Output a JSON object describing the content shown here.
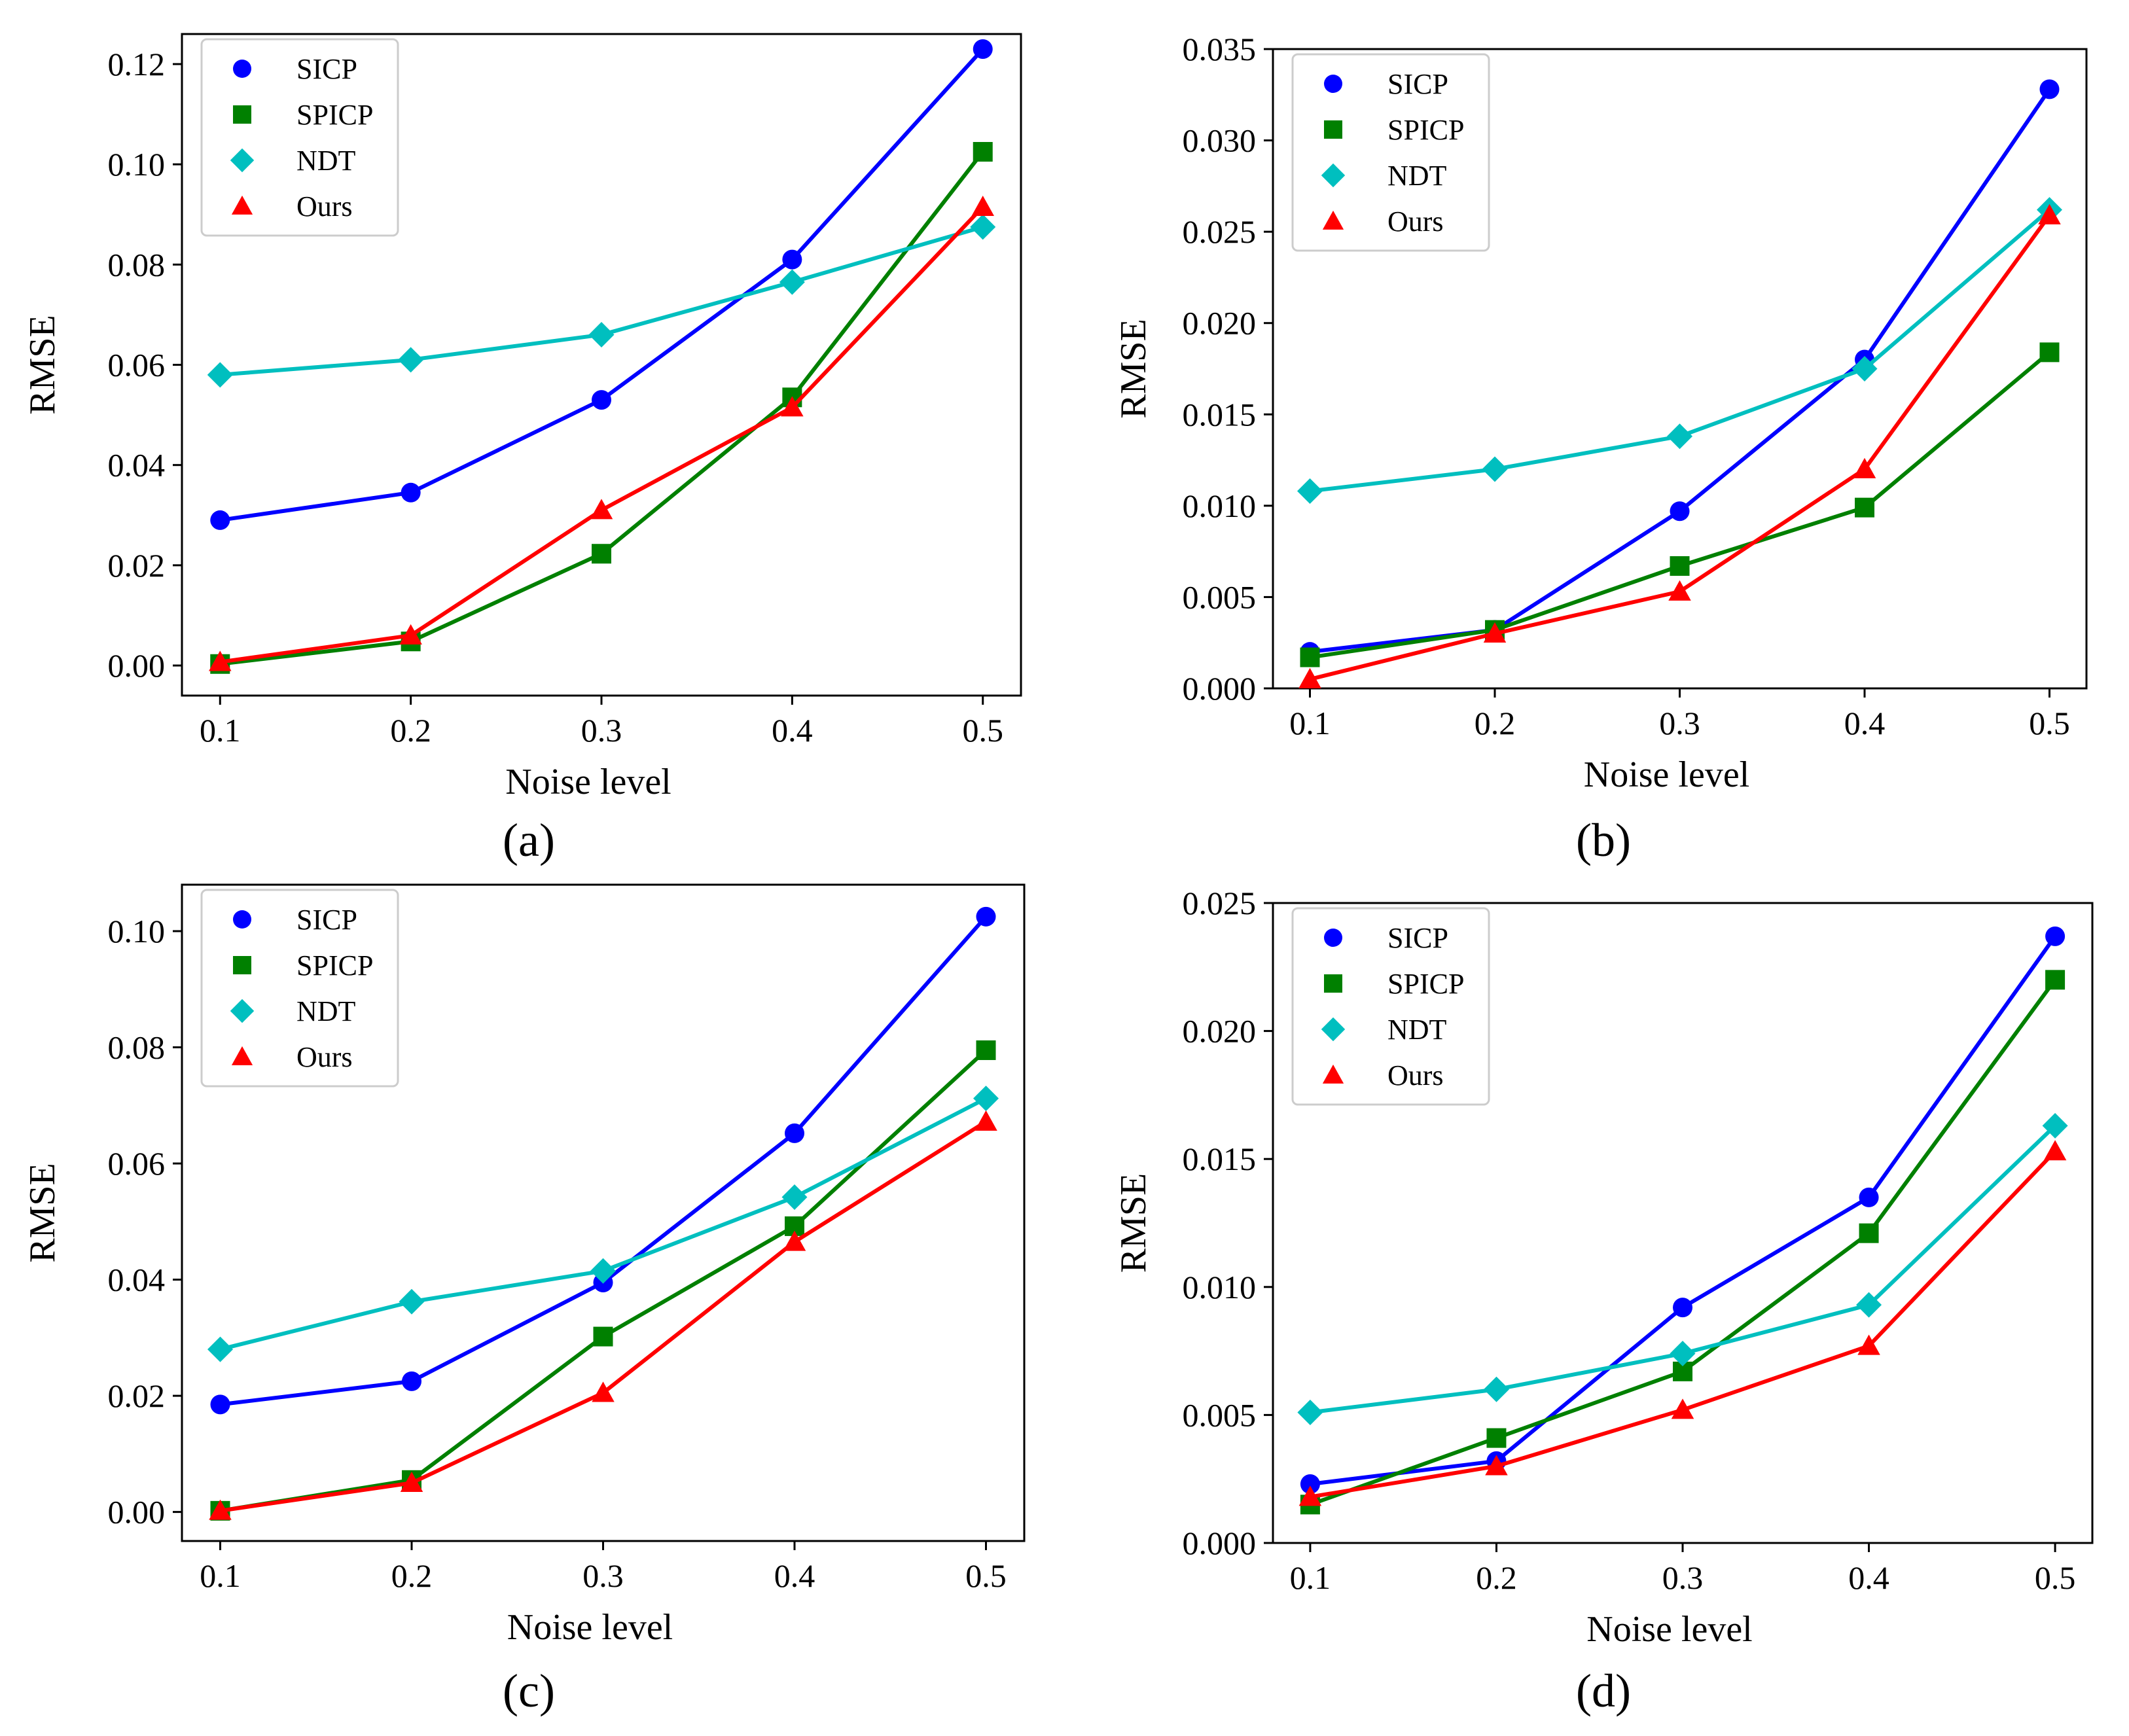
{
  "figure": {
    "panel_labels": [
      "(a)",
      "(b)",
      "(c)",
      "(d)"
    ],
    "panel_letters": [
      "a",
      "b",
      "c",
      "d"
    ]
  },
  "colors": {
    "SICP": "#0000ff",
    "SPICP": "#008000",
    "NDT": "#00bfbf",
    "Ours": "#ff0000"
  },
  "chart_data": [
    {
      "type": "line",
      "title": "",
      "xlabel": "Noise level",
      "ylabel": "RMSE",
      "x": [
        0.1,
        0.2,
        0.3,
        0.4,
        0.5
      ],
      "x_ticks": [
        "0.1",
        "0.2",
        "0.3",
        "0.4",
        "0.5"
      ],
      "ylim": [
        -0.006,
        0.126
      ],
      "y_ticks": [
        0.0,
        0.02,
        0.04,
        0.06,
        0.08,
        0.1,
        0.12
      ],
      "y_tick_labels": [
        "0.00",
        "0.02",
        "0.04",
        "0.06",
        "0.08",
        "0.10",
        "0.12"
      ],
      "legend_position": "upper-left",
      "series": [
        {
          "name": "SICP",
          "marker": "circle",
          "values": [
            0.029,
            0.0345,
            0.053,
            0.081,
            0.123
          ]
        },
        {
          "name": "SPICP",
          "marker": "square",
          "values": [
            0.0003,
            0.0048,
            0.0223,
            0.0535,
            0.1025
          ]
        },
        {
          "name": "NDT",
          "marker": "diamond",
          "values": [
            0.058,
            0.061,
            0.066,
            0.0765,
            0.0875
          ]
        },
        {
          "name": "Ours",
          "marker": "triangle",
          "values": [
            0.0007,
            0.006,
            0.031,
            0.0515,
            0.0915
          ]
        }
      ]
    },
    {
      "type": "line",
      "title": "",
      "xlabel": "Noise level",
      "ylabel": "RMSE",
      "x": [
        0.1,
        0.2,
        0.3,
        0.4,
        0.5
      ],
      "x_ticks": [
        "0.1",
        "0.2",
        "0.3",
        "0.4",
        "0.5"
      ],
      "ylim": [
        0.0,
        0.035
      ],
      "y_ticks": [
        0.0,
        0.005,
        0.01,
        0.015,
        0.02,
        0.025,
        0.03,
        0.035
      ],
      "y_tick_labels": [
        "0.000",
        "0.005",
        "0.010",
        "0.015",
        "0.020",
        "0.025",
        "0.030",
        "0.035"
      ],
      "legend_position": "upper-left",
      "series": [
        {
          "name": "SICP",
          "marker": "circle",
          "values": [
            0.002,
            0.0032,
            0.0097,
            0.018,
            0.0328
          ]
        },
        {
          "name": "SPICP",
          "marker": "square",
          "values": [
            0.0017,
            0.0032,
            0.0067,
            0.0099,
            0.0184
          ]
        },
        {
          "name": "NDT",
          "marker": "diamond",
          "values": [
            0.0108,
            0.012,
            0.0138,
            0.0175,
            0.0262
          ]
        },
        {
          "name": "Ours",
          "marker": "triangle",
          "values": [
            0.0005,
            0.003,
            0.0053,
            0.012,
            0.0259
          ]
        }
      ]
    },
    {
      "type": "line",
      "title": "",
      "xlabel": "Noise level",
      "ylabel": "RMSE",
      "x": [
        0.1,
        0.2,
        0.3,
        0.4,
        0.5
      ],
      "x_ticks": [
        "0.1",
        "0.2",
        "0.3",
        "0.4",
        "0.5"
      ],
      "ylim": [
        -0.005,
        0.108
      ],
      "y_ticks": [
        0.0,
        0.02,
        0.04,
        0.06,
        0.08,
        0.1
      ],
      "y_tick_labels": [
        "0.00",
        "0.02",
        "0.04",
        "0.06",
        "0.08",
        "0.10"
      ],
      "legend_position": "upper-left",
      "series": [
        {
          "name": "SICP",
          "marker": "circle",
          "values": [
            0.0185,
            0.0225,
            0.0395,
            0.0652,
            0.1025
          ]
        },
        {
          "name": "SPICP",
          "marker": "square",
          "values": [
            0.0002,
            0.0055,
            0.0302,
            0.0492,
            0.0795
          ]
        },
        {
          "name": "NDT",
          "marker": "diamond",
          "values": [
            0.028,
            0.0362,
            0.0415,
            0.0542,
            0.0712
          ]
        },
        {
          "name": "Ours",
          "marker": "triangle",
          "values": [
            0.0002,
            0.005,
            0.0205,
            0.0465,
            0.0672
          ]
        }
      ]
    },
    {
      "type": "line",
      "title": "",
      "xlabel": "Noise level",
      "ylabel": "RMSE",
      "x": [
        0.1,
        0.2,
        0.3,
        0.4,
        0.5
      ],
      "x_ticks": [
        "0.1",
        "0.2",
        "0.3",
        "0.4",
        "0.5"
      ],
      "ylim": [
        0.0,
        0.025
      ],
      "y_ticks": [
        0.0,
        0.005,
        0.01,
        0.015,
        0.02,
        0.025
      ],
      "y_tick_labels": [
        "0.000",
        "0.005",
        "0.010",
        "0.015",
        "0.020",
        "0.025"
      ],
      "legend_position": "upper-left",
      "series": [
        {
          "name": "SICP",
          "marker": "circle",
          "values": [
            0.0023,
            0.0032,
            0.0092,
            0.0135,
            0.0237
          ]
        },
        {
          "name": "SPICP",
          "marker": "square",
          "values": [
            0.0015,
            0.0041,
            0.0067,
            0.0121,
            0.022
          ]
        },
        {
          "name": "NDT",
          "marker": "diamond",
          "values": [
            0.0051,
            0.006,
            0.0074,
            0.0093,
            0.0163
          ]
        },
        {
          "name": "Ours",
          "marker": "triangle",
          "values": [
            0.0018,
            0.003,
            0.0052,
            0.0077,
            0.0153
          ]
        }
      ]
    }
  ]
}
